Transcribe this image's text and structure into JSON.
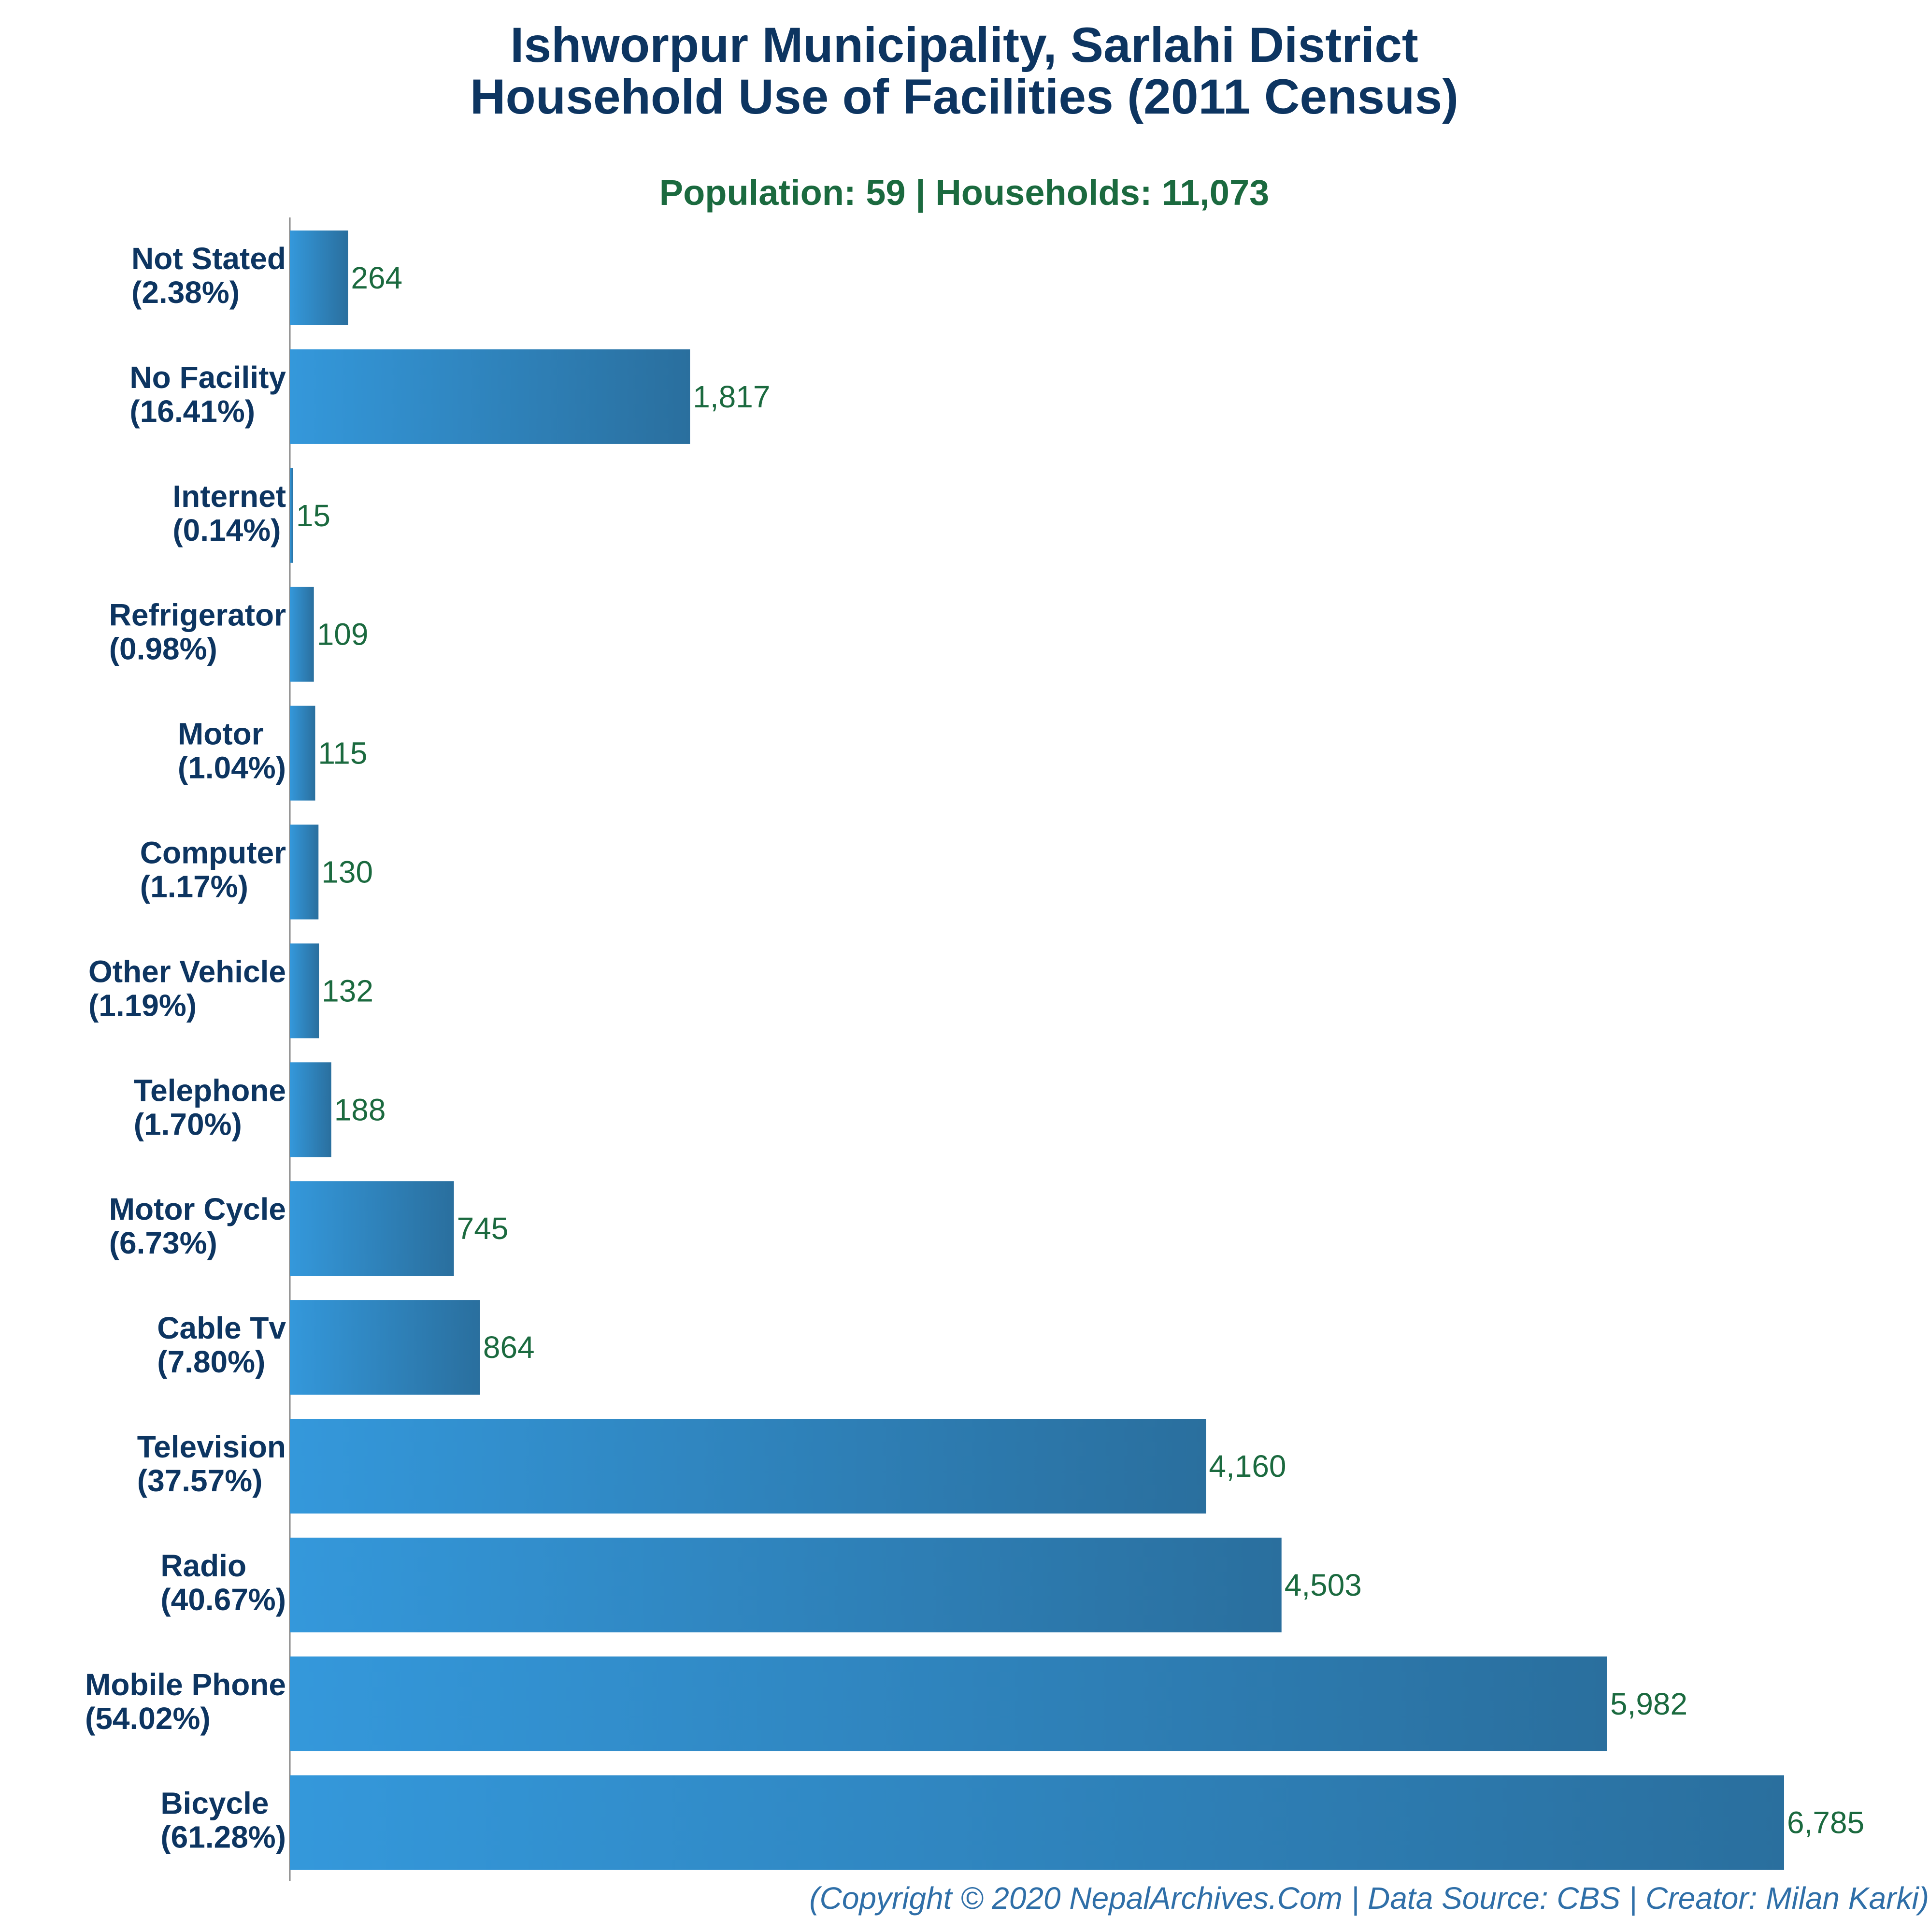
{
  "colors": {
    "title": "#0d3561",
    "subtitle": "#1b6a3f",
    "category_label": "#0d3561",
    "value_label": "#1b6a3f",
    "credit": "#2f6fa8",
    "bar_gradient_start": "#3498db",
    "bar_gradient_end": "#2a6f9e",
    "axis_line": "#888888"
  },
  "credit": "(Copyright © 2020 NepalArchives.Com | Data Source: CBS | Creator: Milan Karki)",
  "chart_data": {
    "type": "bar",
    "orientation": "horizontal",
    "title": [
      "Ishworpur Municipality, Sarlahi District",
      "Household Use of Facilities (2011 Census)"
    ],
    "subtitle": "Population: 59 | Households: 11,073",
    "xlabel": "",
    "ylabel": "",
    "xlim": [
      0,
      6785
    ],
    "grid": false,
    "legend": "none",
    "categories": [
      {
        "name": "Not Stated",
        "pct": "(2.38%)"
      },
      {
        "name": "No Facility",
        "pct": "(16.41%)"
      },
      {
        "name": "Internet",
        "pct": "(0.14%)"
      },
      {
        "name": "Refrigerator",
        "pct": "(0.98%)"
      },
      {
        "name": "Motor",
        "pct": "(1.04%)"
      },
      {
        "name": "Computer",
        "pct": "(1.17%)"
      },
      {
        "name": "Other Vehicle",
        "pct": "(1.19%)"
      },
      {
        "name": "Telephone",
        "pct": "(1.70%)"
      },
      {
        "name": "Motor Cycle",
        "pct": "(6.73%)"
      },
      {
        "name": "Cable Tv",
        "pct": "(7.80%)"
      },
      {
        "name": "Television",
        "pct": "(37.57%)"
      },
      {
        "name": "Radio",
        "pct": "(40.67%)"
      },
      {
        "name": "Mobile Phone",
        "pct": "(54.02%)"
      },
      {
        "name": "Bicycle",
        "pct": "(61.28%)"
      }
    ],
    "values": [
      264,
      1817,
      15,
      109,
      115,
      130,
      132,
      188,
      745,
      864,
      4160,
      4503,
      5982,
      6785
    ],
    "value_labels": [
      "264",
      "1,817",
      "15",
      "109",
      "115",
      "130",
      "132",
      "188",
      "745",
      "864",
      "4,160",
      "4,503",
      "5,982",
      "6,785"
    ]
  }
}
